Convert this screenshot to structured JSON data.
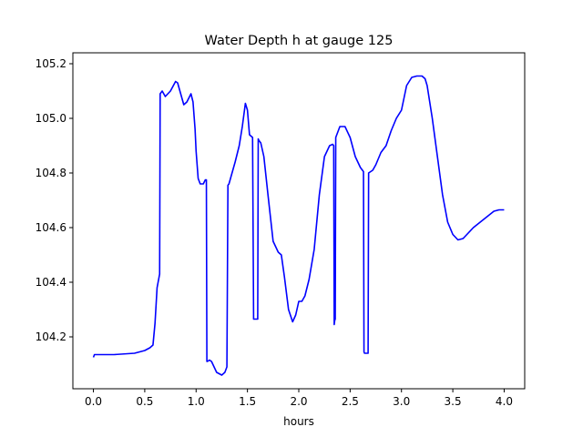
{
  "chart_data": {
    "type": "line",
    "title": "Water Depth h at gauge 125",
    "xlabel": "hours",
    "ylabel": "",
    "xlim": [
      -0.2,
      4.2
    ],
    "ylim": [
      104.01,
      105.24
    ],
    "xticks": [
      0.0,
      0.5,
      1.0,
      1.5,
      2.0,
      2.5,
      3.0,
      3.5,
      4.0
    ],
    "xtick_labels": [
      "0.0",
      "0.5",
      "1.0",
      "1.5",
      "2.0",
      "2.5",
      "3.0",
      "3.5",
      "4.0"
    ],
    "yticks": [
      104.2,
      104.4,
      104.6,
      104.8,
      105.0,
      105.2
    ],
    "ytick_labels": [
      "104.2",
      "104.4",
      "104.6",
      "104.8",
      "105.0",
      "105.2"
    ],
    "grid": false,
    "legend": "none",
    "series": [
      {
        "color": "#0000ff",
        "x": [
          0.0,
          0.01,
          0.2,
          0.4,
          0.5,
          0.55,
          0.58,
          0.6,
          0.62,
          0.64,
          0.645,
          0.65,
          0.67,
          0.7,
          0.75,
          0.8,
          0.82,
          0.85,
          0.88,
          0.91,
          0.95,
          0.97,
          0.99,
          1.0,
          1.02,
          1.04,
          1.07,
          1.09,
          1.1,
          1.105,
          1.11,
          1.13,
          1.15,
          1.2,
          1.25,
          1.28,
          1.3,
          1.31,
          1.32,
          1.35,
          1.38,
          1.42,
          1.45,
          1.48,
          1.5,
          1.52,
          1.55,
          1.56,
          1.565,
          1.57,
          1.6,
          1.605,
          1.61,
          1.63,
          1.66,
          1.7,
          1.75,
          1.8,
          1.83,
          1.86,
          1.9,
          1.94,
          1.97,
          2.0,
          2.03,
          2.06,
          2.1,
          2.15,
          2.2,
          2.25,
          2.3,
          2.33,
          2.34,
          2.345,
          2.35,
          2.355,
          2.36,
          2.4,
          2.45,
          2.5,
          2.55,
          2.6,
          2.63,
          2.635,
          2.64,
          2.66,
          2.67,
          2.675,
          2.68,
          2.72,
          2.75,
          2.8,
          2.85,
          2.9,
          2.95,
          3.0,
          3.05,
          3.1,
          3.15,
          3.2,
          3.23,
          3.25,
          3.3,
          3.35,
          3.4,
          3.45,
          3.5,
          3.55,
          3.6,
          3.65,
          3.7,
          3.75,
          3.8,
          3.85,
          3.9,
          3.95,
          4.0
        ],
        "y": [
          104.125,
          104.135,
          104.135,
          104.14,
          104.15,
          104.16,
          104.17,
          104.25,
          104.38,
          104.42,
          104.43,
          105.09,
          105.1,
          105.08,
          105.1,
          105.135,
          105.13,
          105.09,
          105.05,
          105.06,
          105.09,
          105.06,
          104.96,
          104.88,
          104.78,
          104.76,
          104.76,
          104.775,
          104.775,
          104.11,
          104.11,
          104.115,
          104.11,
          104.07,
          104.06,
          104.07,
          104.09,
          104.755,
          104.76,
          104.8,
          104.84,
          104.9,
          104.97,
          105.055,
          105.03,
          104.94,
          104.93,
          104.265,
          104.265,
          104.265,
          104.265,
          104.925,
          104.92,
          104.91,
          104.86,
          104.72,
          104.55,
          104.51,
          104.5,
          104.42,
          104.3,
          104.255,
          104.28,
          104.33,
          104.33,
          104.35,
          104.41,
          104.52,
          104.72,
          104.86,
          104.9,
          104.905,
          104.9,
          104.245,
          104.26,
          104.265,
          104.93,
          104.97,
          104.97,
          104.93,
          104.86,
          104.82,
          104.805,
          104.145,
          104.14,
          104.14,
          104.14,
          104.14,
          104.8,
          104.81,
          104.83,
          104.875,
          104.9,
          104.955,
          105.0,
          105.03,
          105.12,
          105.15,
          105.155,
          105.155,
          105.145,
          105.12,
          105.0,
          104.86,
          104.72,
          104.62,
          104.575,
          104.555,
          104.56,
          104.58,
          104.6,
          104.615,
          104.63,
          104.645,
          104.66,
          104.665,
          104.665
        ]
      }
    ]
  }
}
